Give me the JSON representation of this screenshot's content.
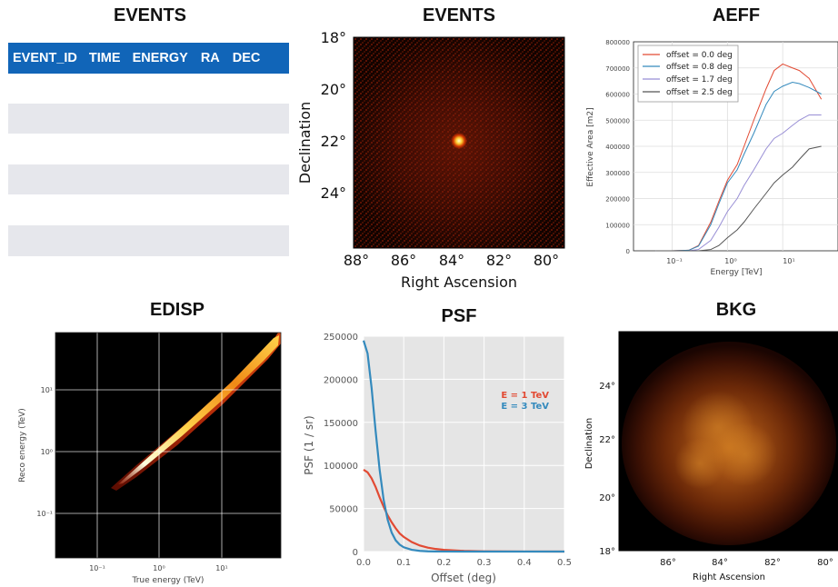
{
  "events_table": {
    "title": "EVENTS",
    "columns": [
      "EVENT_ID",
      "TIME",
      "ENERGY",
      "RA",
      "DEC"
    ]
  },
  "events_image": {
    "title": "EVENTS",
    "xlabel": "Right Ascension",
    "ylabel": "Declination",
    "xticks": [
      "88°",
      "86°",
      "84°",
      "82°",
      "80°"
    ],
    "yticks": [
      "18°",
      "20°",
      "22°",
      "24°"
    ]
  },
  "aeff": {
    "title": "AEFF",
    "xlabel": "Energy [TeV]",
    "ylabel": "Effective Area [m2]",
    "yticks": [
      "800000",
      "700000",
      "600000",
      "500000",
      "400000",
      "300000",
      "200000",
      "100000",
      "0"
    ],
    "xticks": [
      "10⁻¹",
      "10⁰",
      "10¹"
    ],
    "legend": [
      "offset = 0.0 deg",
      "offset = 0.8 deg",
      "offset = 1.7 deg",
      "offset = 2.5 deg"
    ],
    "colors": [
      "#e24a33",
      "#348abd",
      "#988ed5",
      "#555555"
    ]
  },
  "edisp": {
    "title": "EDISP",
    "xlabel": "True energy (TeV)",
    "ylabel": "Reco energy (TeV)",
    "xticks": [
      "10⁻¹",
      "10⁰",
      "10¹"
    ],
    "yticks": [
      "10¹",
      "10⁰",
      "10⁻¹"
    ]
  },
  "psf": {
    "title": "PSF",
    "xlabel": "Offset (deg)",
    "ylabel": "PSF (1 / sr)",
    "legend": [
      "E = 1 TeV",
      "E = 3 TeV"
    ],
    "colors": [
      "#e24a33",
      "#348abd"
    ]
  },
  "bkg": {
    "title": "BKG",
    "xlabel": "Right Ascension",
    "ylabel": "Declination",
    "xticks": [
      "86°",
      "84°",
      "82°",
      "80°"
    ],
    "yticks": [
      "24°",
      "22°",
      "20°",
      "18°"
    ]
  },
  "chart_data": [
    {
      "type": "line",
      "title": "AEFF",
      "xlabel": "Energy [TeV]",
      "ylabel": "Effective Area [m2]",
      "xscale": "log",
      "xlim": [
        0.02,
        100
      ],
      "ylim": [
        0,
        800000
      ],
      "legend_position": "top-left",
      "grid": true,
      "x": [
        0.05,
        0.1,
        0.2,
        0.3,
        0.5,
        0.7,
        1,
        1.5,
        2,
        3,
        5,
        7,
        10,
        15,
        20,
        30,
        50
      ],
      "series": [
        {
          "name": "offset = 0.0 deg",
          "values": [
            0,
            0,
            2000,
            20000,
            110000,
            190000,
            270000,
            330000,
            400000,
            500000,
            620000,
            690000,
            715000,
            700000,
            690000,
            660000,
            580000
          ]
        },
        {
          "name": "offset = 0.8 deg",
          "values": [
            0,
            0,
            2000,
            18000,
            100000,
            180000,
            260000,
            310000,
            370000,
            450000,
            560000,
            610000,
            630000,
            645000,
            640000,
            625000,
            600000
          ]
        },
        {
          "name": "offset = 1.7 deg",
          "values": [
            0,
            0,
            0,
            5000,
            40000,
            90000,
            150000,
            200000,
            250000,
            310000,
            390000,
            430000,
            450000,
            480000,
            500000,
            520000,
            520000
          ]
        },
        {
          "name": "offset = 2.5 deg",
          "values": [
            0,
            0,
            0,
            0,
            5000,
            20000,
            50000,
            80000,
            110000,
            160000,
            220000,
            260000,
            290000,
            320000,
            350000,
            390000,
            400000
          ]
        }
      ]
    },
    {
      "type": "line",
      "title": "PSF",
      "xlabel": "Offset (deg)",
      "ylabel": "PSF (1 / sr)",
      "xlim": [
        0,
        0.5
      ],
      "ylim": [
        0,
        250000
      ],
      "yticks": [
        0,
        50000,
        100000,
        150000,
        200000,
        250000
      ],
      "xticks": [
        0.0,
        0.1,
        0.2,
        0.3,
        0.4,
        0.5
      ],
      "legend_position": "right",
      "x": [
        0,
        0.01,
        0.02,
        0.03,
        0.04,
        0.05,
        0.06,
        0.07,
        0.08,
        0.09,
        0.1,
        0.12,
        0.14,
        0.16,
        0.18,
        0.2,
        0.25,
        0.3,
        0.35,
        0.4,
        0.5
      ],
      "series": [
        {
          "name": "E = 1 TeV",
          "values": [
            95000,
            92000,
            85000,
            75000,
            63000,
            52000,
            42000,
            34000,
            27000,
            21000,
            17000,
            11000,
            7000,
            4500,
            3000,
            2000,
            800,
            300,
            100,
            50,
            10
          ]
        },
        {
          "name": "E = 3 TeV",
          "values": [
            245000,
            230000,
            190000,
            140000,
            95000,
            60000,
            37000,
            22000,
            13000,
            8000,
            5000,
            2000,
            800,
            300,
            100,
            50,
            10,
            0,
            0,
            0,
            0
          ]
        }
      ]
    },
    {
      "type": "heatmap",
      "title": "EDISP",
      "xlabel": "True energy (TeV)",
      "ylabel": "Reco energy (TeV)",
      "xscale": "log",
      "yscale": "log",
      "xlim": [
        0.02,
        80
      ],
      "ylim": [
        0.02,
        80
      ]
    },
    {
      "type": "heatmap",
      "title": "EVENTS",
      "xlabel": "Right Ascension",
      "ylabel": "Declination",
      "xlim": [
        88.8,
        79.2
      ],
      "ylim": [
        18,
        26
      ]
    },
    {
      "type": "heatmap",
      "title": "BKG",
      "xlabel": "Right Ascension",
      "ylabel": "Declination",
      "xlim": [
        87.5,
        79.5
      ],
      "ylim": [
        18,
        26
      ]
    }
  ]
}
